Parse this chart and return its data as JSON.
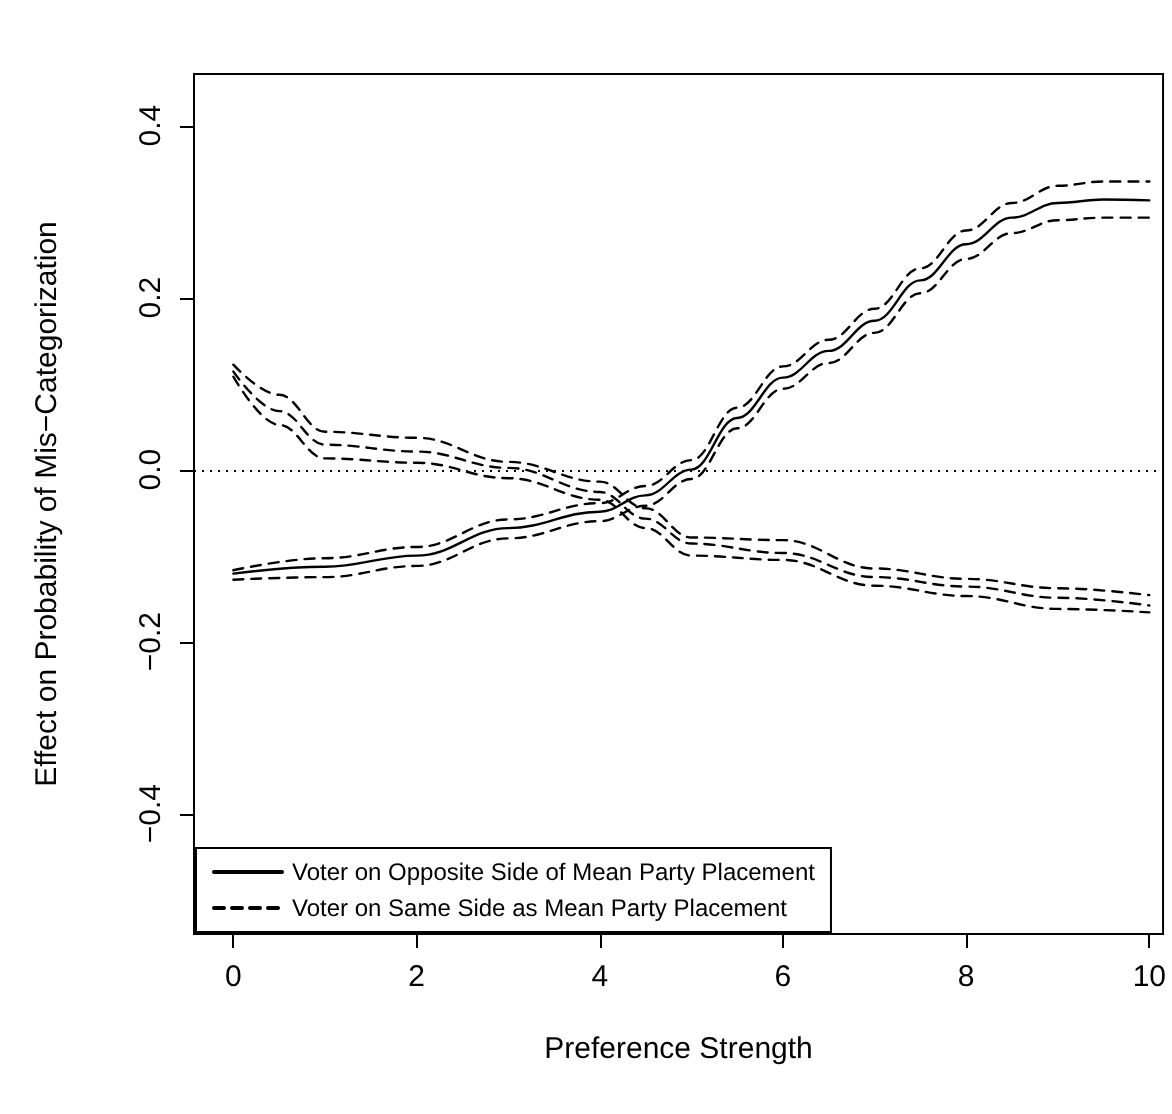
{
  "chart_data": {
    "type": "line",
    "xlabel": "Preference Strength",
    "ylabel": "Effect on Probability of Mis−Categorization",
    "xlim": [
      -0.43,
      10.15
    ],
    "xticks": [
      0,
      2,
      4,
      6,
      8,
      10
    ],
    "ylim": [
      -0.54,
      0.46
    ],
    "yticks": [
      {
        "value": -0.4,
        "label": "−0.4"
      },
      {
        "value": -0.2,
        "label": "−0.2"
      },
      {
        "value": 0,
        "label": "0.0"
      },
      0.2,
      0.4
    ],
    "grid": false,
    "legend": "bottom left",
    "marker": "none",
    "ref_lines": [
      {
        "axis": "y",
        "value": 0,
        "line_style": "dotted",
        "color": "#000000"
      }
    ],
    "series": [
      {
        "name": "Voter on Opposite Side of Mean Party Placement",
        "color": "#000000",
        "line_style": "solid",
        "x": [
          0,
          1,
          2,
          3,
          4,
          4.5,
          5,
          5.5,
          6,
          6.5,
          7,
          7.5,
          8,
          8.5,
          9,
          9.5,
          10
        ],
        "values": [
          -0.121,
          -0.113,
          -0.1,
          -0.068,
          -0.049,
          -0.03,
          0.0,
          0.06,
          0.107,
          0.138,
          0.173,
          0.22,
          0.262,
          0.293,
          0.31,
          0.314,
          0.313
        ]
      },
      {
        "color": "#000000",
        "line_style": "dashed",
        "x": [
          0,
          1,
          2,
          3,
          4,
          4.5,
          5,
          5.5,
          6,
          6.5,
          7,
          7.5,
          8,
          8.5,
          9,
          9.5,
          10
        ],
        "values": [
          -0.117,
          -0.103,
          -0.09,
          -0.058,
          -0.039,
          -0.019,
          0.011,
          0.072,
          0.12,
          0.151,
          0.187,
          0.234,
          0.278,
          0.31,
          0.33,
          0.335,
          0.335
        ]
      },
      {
        "color": "#000000",
        "line_style": "dashed",
        "x": [
          0,
          1,
          2,
          3,
          4,
          4.5,
          5,
          5.5,
          6,
          6.5,
          7,
          7.5,
          8,
          8.5,
          9,
          9.5,
          10
        ],
        "values": [
          -0.128,
          -0.125,
          -0.112,
          -0.08,
          -0.06,
          -0.042,
          -0.011,
          0.048,
          0.094,
          0.124,
          0.159,
          0.205,
          0.245,
          0.275,
          0.29,
          0.293,
          0.293
        ]
      },
      {
        "name": "Voter on Same Side as Mean Party Placement",
        "color": "#000000",
        "line_style": "dashed",
        "x": [
          0,
          0.5,
          1,
          2,
          3,
          4,
          4.5,
          5,
          6,
          7,
          8,
          9,
          10
        ],
        "values": [
          0.114,
          0.068,
          0.029,
          0.021,
          0.002,
          -0.026,
          -0.057,
          -0.086,
          -0.097,
          -0.125,
          -0.136,
          -0.149,
          -0.158
        ]
      },
      {
        "color": "#000000",
        "line_style": "dashed",
        "x": [
          0,
          0.5,
          1,
          2,
          3,
          4,
          4.5,
          5,
          6,
          7,
          8,
          9,
          10
        ],
        "values": [
          0.122,
          0.087,
          0.044,
          0.037,
          0.009,
          -0.014,
          -0.045,
          -0.079,
          -0.082,
          -0.115,
          -0.127,
          -0.138,
          -0.146
        ]
      },
      {
        "color": "#000000",
        "line_style": "dashed",
        "x": [
          0,
          0.5,
          1,
          2,
          3,
          4,
          4.5,
          5,
          6,
          7,
          8,
          9,
          10
        ],
        "values": [
          0.108,
          0.052,
          0.013,
          0.008,
          -0.01,
          -0.035,
          -0.068,
          -0.1,
          -0.105,
          -0.135,
          -0.147,
          -0.162,
          -0.166
        ]
      }
    ]
  }
}
